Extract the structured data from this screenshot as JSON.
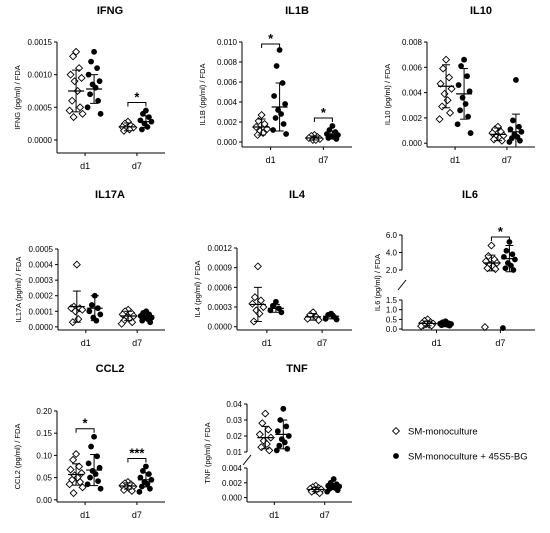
{
  "chart_data": [
    {
      "type": "scatter",
      "title": "IFNG",
      "ylabel": "IFNG (pg/ml) / FDA",
      "categories": [
        "d1",
        "d7"
      ],
      "yticks": [
        "0.0000",
        "0.0005",
        "0.0010",
        "0.0015"
      ],
      "ylim": [
        -0.0002,
        0.0015
      ],
      "series": [
        {
          "name": "SM-monoculture",
          "marker": "diamond-open",
          "groups": [
            [
              0.00135,
              0.00128,
              0.0011,
              0.001,
              0.00095,
              0.0009,
              0.00075,
              0.0006,
              0.0005,
              0.00045,
              0.0004,
              0.00035
            ],
            [
              0.00028,
              0.00025,
              0.00022,
              0.0002,
              0.00019,
              0.00018,
              0.00016,
              0.00014
            ]
          ],
          "mean": [
            0.00075,
            0.0002
          ],
          "sd": [
            0.00032,
            6e-05
          ]
        },
        {
          "name": "SM-monoculture + 45S5-BG",
          "marker": "circle-filled",
          "groups": [
            [
              0.00135,
              0.0012,
              0.0011,
              0.001,
              0.0009,
              0.00085,
              0.0008,
              0.0007,
              0.0006,
              0.0005,
              0.0004
            ],
            [
              0.00045,
              0.0004,
              0.00035,
              0.0003,
              0.00028,
              0.00025,
              0.0002,
              0.00016
            ]
          ],
          "mean": [
            0.00078,
            0.00028
          ],
          "sd": [
            0.00022,
            9e-05
          ]
        }
      ],
      "annotations": [
        {
          "category": "d7",
          "text": "*"
        }
      ]
    },
    {
      "type": "scatter",
      "title": "IL1B",
      "ylabel": "IL1B (pg/ml) / FDA",
      "categories": [
        "d1",
        "d7"
      ],
      "yticks": [
        "0.000",
        "0.002",
        "0.004",
        "0.006",
        "0.008",
        "0.010"
      ],
      "ylim": [
        -0.0005,
        0.01
      ],
      "series": [
        {
          "name": "SM-monoculture",
          "marker": "diamond-open",
          "groups": [
            [
              0.0027,
              0.0021,
              0.0018,
              0.0015,
              0.0013,
              0.0011,
              0.0009,
              0.0007
            ],
            [
              0.0007,
              0.0006,
              0.0005,
              0.0004,
              0.0003,
              0.0002,
              0.0002
            ]
          ],
          "mean": [
            0.0015,
            0.0004
          ],
          "sd": [
            0.0008,
            0.0002
          ]
        },
        {
          "name": "SM-monoculture + 45S5-BG",
          "marker": "circle-filled",
          "groups": [
            [
              0.0092,
              0.0076,
              0.0059,
              0.0046,
              0.0038,
              0.0032,
              0.0028,
              0.0024,
              0.0018,
              0.0012,
              0.0008
            ],
            [
              0.0016,
              0.0012,
              0.001,
              0.0008,
              0.0007,
              0.0006,
              0.0005,
              0.0004,
              0.0003
            ]
          ],
          "mean": [
            0.0035,
            0.0007
          ],
          "sd": [
            0.0024,
            0.0004
          ]
        }
      ],
      "annotations": [
        {
          "category": "d1",
          "text": "*"
        },
        {
          "category": "d7",
          "text": "*"
        }
      ]
    },
    {
      "type": "scatter",
      "title": "IL10",
      "ylabel": "IL10 (pg/ml) / FDA",
      "categories": [
        "d1",
        "d7"
      ],
      "yticks": [
        "0.000",
        "0.002",
        "0.004",
        "0.006",
        "0.008"
      ],
      "ylim": [
        -0.0003,
        0.008
      ],
      "series": [
        {
          "name": "SM-monoculture",
          "marker": "diamond-open",
          "groups": [
            [
              0.0066,
              0.0059,
              0.0052,
              0.0047,
              0.0043,
              0.0039,
              0.0034,
              0.0029,
              0.0024,
              0.0019
            ],
            [
              0.0013,
              0.0011,
              0.0009,
              0.0008,
              0.0006,
              0.0005,
              0.0004,
              0.0003,
              0.0002
            ]
          ],
          "mean": [
            0.0045,
            0.0007
          ],
          "sd": [
            0.0017,
            0.0005
          ]
        },
        {
          "name": "SM-monoculture + 45S5-BG",
          "marker": "circle-filled",
          "groups": [
            [
              0.0066,
              0.0061,
              0.0053,
              0.0046,
              0.0041,
              0.0036,
              0.0031,
              0.0026,
              0.0021,
              0.0015,
              0.0008
            ],
            [
              0.005,
              0.0018,
              0.0013,
              0.0011,
              0.0009,
              0.0007,
              0.0005,
              0.0004,
              0.0002,
              0.0001
            ]
          ],
          "mean": [
            0.0039,
            0.0009
          ],
          "sd": [
            0.002,
            0.0014
          ]
        }
      ]
    },
    {
      "type": "scatter",
      "title": "IL17A",
      "ylabel": "IL17A (pg/ml) / FDA",
      "categories": [
        "d1",
        "d7"
      ],
      "yticks": [
        "0.0000",
        "0.0001",
        "0.0002",
        "0.0003",
        "0.0004",
        "0.0005"
      ],
      "ylim": [
        -2e-05,
        0.0005
      ],
      "series": [
        {
          "name": "SM-monoculture",
          "marker": "diamond-open",
          "groups": [
            [
              0.0004,
              0.00013,
              0.00012,
              0.00012,
              0.00011,
              0.0001,
              5e-05,
              3e-05
            ],
            [
              0.00011,
              0.0001,
              9e-05,
              8e-05,
              7e-05,
              6e-05,
              5e-05,
              4e-05,
              3e-05,
              2e-05
            ]
          ],
          "mean": [
            0.00013,
            7e-05
          ],
          "sd": [
            0.0001,
            3e-05
          ]
        },
        {
          "name": "SM-monoculture + 45S5-BG",
          "marker": "circle-filled",
          "groups": [
            [
              0.0002,
              0.00014,
              0.00012,
              0.0001,
              8e-05,
              6e-05,
              4e-05
            ],
            [
              0.0001,
              9e-05,
              8e-05,
              7e-05,
              6e-05,
              6e-05,
              5e-05,
              4e-05,
              3e-05
            ]
          ],
          "mean": [
            0.00012,
            7e-05
          ],
          "sd": [
            8e-05,
            2e-05
          ]
        }
      ]
    },
    {
      "type": "scatter",
      "title": "IL4",
      "ylabel": "IL4 (pg/ml) / FDA",
      "categories": [
        "d1",
        "d7"
      ],
      "yticks": [
        "0.0000",
        "0.0003",
        "0.0006",
        "0.0009",
        "0.0012"
      ],
      "ylim": [
        -5e-05,
        0.0012
      ],
      "series": [
        {
          "name": "SM-monoculture",
          "marker": "diamond-open",
          "groups": [
            [
              0.00092,
              0.00045,
              0.0004,
              0.00035,
              0.0003,
              0.00025,
              0.0002,
              8e-05
            ],
            [
              0.00022,
              0.00018,
              0.00015,
              0.00012,
              0.0001
            ]
          ],
          "mean": [
            0.00034,
            0.00015
          ],
          "sd": [
            0.00026,
            5e-05
          ]
        },
        {
          "name": "SM-monoculture + 45S5-BG",
          "marker": "circle-filled",
          "groups": [
            [
              0.00038,
              0.00032,
              0.00028,
              0.00025,
              0.00022
            ],
            [
              0.0002,
              0.00018,
              0.00015,
              0.00012,
              0.00011
            ]
          ],
          "mean": [
            0.00028,
            0.00016
          ],
          "sd": [
            6e-05,
            4e-05
          ]
        }
      ]
    },
    {
      "type": "scatter",
      "title": "IL6",
      "ylabel": "IL6 (pg/ml) / FDA",
      "categories": [
        "d1",
        "d7"
      ],
      "yticks": [
        "0.0",
        "0.5",
        "1.0",
        "1.5",
        "2.0",
        "4.0",
        "6.0"
      ],
      "ylim": [
        -0.05,
        6.0
      ],
      "axis_break": [
        1.5,
        2.0
      ],
      "series": [
        {
          "name": "SM-monoculture",
          "marker": "diamond-open",
          "groups": [
            [
              0.5,
              0.42,
              0.35,
              0.3,
              0.28,
              0.25,
              0.22,
              0.2,
              0.18,
              0.15
            ],
            [
              4.8,
              3.6,
              3.2,
              3.0,
              2.8,
              2.6,
              2.4,
              2.2,
              2.1,
              0.1
            ]
          ],
          "mean": [
            0.29,
            2.8
          ],
          "sd": [
            0.12,
            0.9
          ]
        },
        {
          "name": "SM-monoculture + 45S5-BG",
          "marker": "circle-filled",
          "groups": [
            [
              0.4,
              0.35,
              0.3,
              0.28,
              0.26,
              0.24,
              0.22,
              0.2,
              0.18
            ],
            [
              5.2,
              4.2,
              3.8,
              3.5,
              3.2,
              2.8,
              2.5,
              2.2,
              2.0,
              0.05
            ]
          ],
          "mean": [
            0.26,
            3.3
          ],
          "sd": [
            0.07,
            1.5
          ]
        }
      ],
      "annotations": [
        {
          "category": "d7",
          "text": "*"
        }
      ]
    },
    {
      "type": "scatter",
      "title": "CCL2",
      "ylabel": "CCL2 (pg/ml) / FDA",
      "categories": [
        "d1",
        "d7"
      ],
      "yticks": [
        "0.00",
        "0.05",
        "0.10",
        "0.15",
        "0.20"
      ],
      "ylim": [
        -0.005,
        0.2
      ],
      "series": [
        {
          "name": "SM-monoculture",
          "marker": "diamond-open",
          "groups": [
            [
              0.103,
              0.09,
              0.075,
              0.068,
              0.06,
              0.055,
              0.05,
              0.045,
              0.04,
              0.035,
              0.028,
              0.015
            ],
            [
              0.04,
              0.037,
              0.035,
              0.032,
              0.03,
              0.028,
              0.025,
              0.022,
              0.02
            ]
          ],
          "mean": [
            0.057,
            0.031
          ],
          "sd": [
            0.024,
            0.007
          ]
        },
        {
          "name": "SM-monoculture + 45S5-BG",
          "marker": "circle-filled",
          "groups": [
            [
              0.142,
              0.12,
              0.098,
              0.082,
              0.072,
              0.065,
              0.058,
              0.05,
              0.042,
              0.035,
              0.025
            ],
            [
              0.075,
              0.065,
              0.058,
              0.05,
              0.045,
              0.04,
              0.036,
              0.03,
              0.025,
              0.018
            ]
          ],
          "mean": [
            0.067,
            0.045
          ],
          "sd": [
            0.035,
            0.016
          ]
        }
      ],
      "annotations": [
        {
          "category": "d1",
          "text": "*"
        },
        {
          "category": "d7",
          "text": "***"
        }
      ]
    },
    {
      "type": "scatter",
      "title": "TNF",
      "ylabel": "TNF (pg/ml) / FDA",
      "categories": [
        "d1",
        "d7"
      ],
      "yticks": [
        "0.000",
        "0.002",
        "0.004",
        "0.01",
        "0.02",
        "0.03",
        "0.04"
      ],
      "ylim": [
        -0.0006,
        0.04
      ],
      "axis_break": [
        0.004,
        0.01
      ],
      "series": [
        {
          "name": "SM-monoculture",
          "marker": "diamond-open",
          "groups": [
            [
              0.034,
              0.028,
              0.024,
              0.021,
              0.019,
              0.017,
              0.015,
              0.013,
              0.011
            ],
            [
              0.0016,
              0.0014,
              0.0013,
              0.0012,
              0.0011,
              0.001,
              0.0009,
              0.0008,
              0.0006
            ]
          ],
          "mean": [
            0.019,
            0.0011
          ],
          "sd": [
            0.007,
            0.0003
          ]
        },
        {
          "name": "SM-monoculture + 45S5-BG",
          "marker": "circle-filled",
          "groups": [
            [
              0.037,
              0.03,
              0.026,
              0.023,
              0.02,
              0.018,
              0.016,
              0.014,
              0.012,
              0.011
            ],
            [
              0.0025,
              0.002,
              0.0018,
              0.0016,
              0.0015,
              0.0014,
              0.0013,
              0.0012,
              0.001,
              0.0008
            ]
          ],
          "mean": [
            0.021,
            0.0015
          ],
          "sd": [
            0.009,
            0.0004
          ]
        }
      ]
    }
  ],
  "legend": {
    "items": [
      {
        "label": "SM-monoculture",
        "marker": "diamond-open"
      },
      {
        "label": "SM-monoculture + 45S5-BG",
        "marker": "circle-filled"
      }
    ]
  },
  "colors": {
    "marker": "#000000",
    "axis": "#000000",
    "background": "#ffffff"
  }
}
